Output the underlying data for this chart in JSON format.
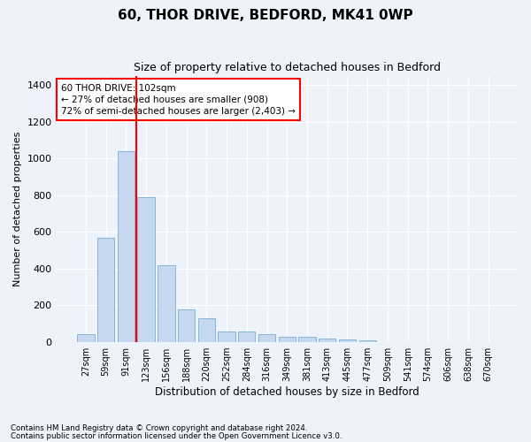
{
  "title1": "60, THOR DRIVE, BEDFORD, MK41 0WP",
  "title2": "Size of property relative to detached houses in Bedford",
  "xlabel": "Distribution of detached houses by size in Bedford",
  "ylabel": "Number of detached properties",
  "categories": [
    "27sqm",
    "59sqm",
    "91sqm",
    "123sqm",
    "156sqm",
    "188sqm",
    "220sqm",
    "252sqm",
    "284sqm",
    "316sqm",
    "349sqm",
    "381sqm",
    "413sqm",
    "445sqm",
    "477sqm",
    "509sqm",
    "541sqm",
    "574sqm",
    "606sqm",
    "638sqm",
    "670sqm"
  ],
  "values": [
    45,
    570,
    1040,
    790,
    420,
    178,
    128,
    60,
    57,
    45,
    30,
    28,
    20,
    15,
    10,
    0,
    0,
    0,
    0,
    0,
    0
  ],
  "bar_color": "#c5d8f0",
  "bar_edge_color": "#7aadd4",
  "vline_color": "red",
  "vline_x_index": 2.5,
  "annotation_text": "60 THOR DRIVE: 102sqm\n← 27% of detached houses are smaller (908)\n72% of semi-detached houses are larger (2,403) →",
  "annotation_box_color": "white",
  "annotation_box_edge_color": "red",
  "ylim": [
    0,
    1450
  ],
  "yticks": [
    0,
    200,
    400,
    600,
    800,
    1000,
    1200,
    1400
  ],
  "footnote1": "Contains HM Land Registry data © Crown copyright and database right 2024.",
  "footnote2": "Contains public sector information licensed under the Open Government Licence v3.0.",
  "bg_color": "#eef2fb",
  "plot_bg_color": "#eef2fb"
}
